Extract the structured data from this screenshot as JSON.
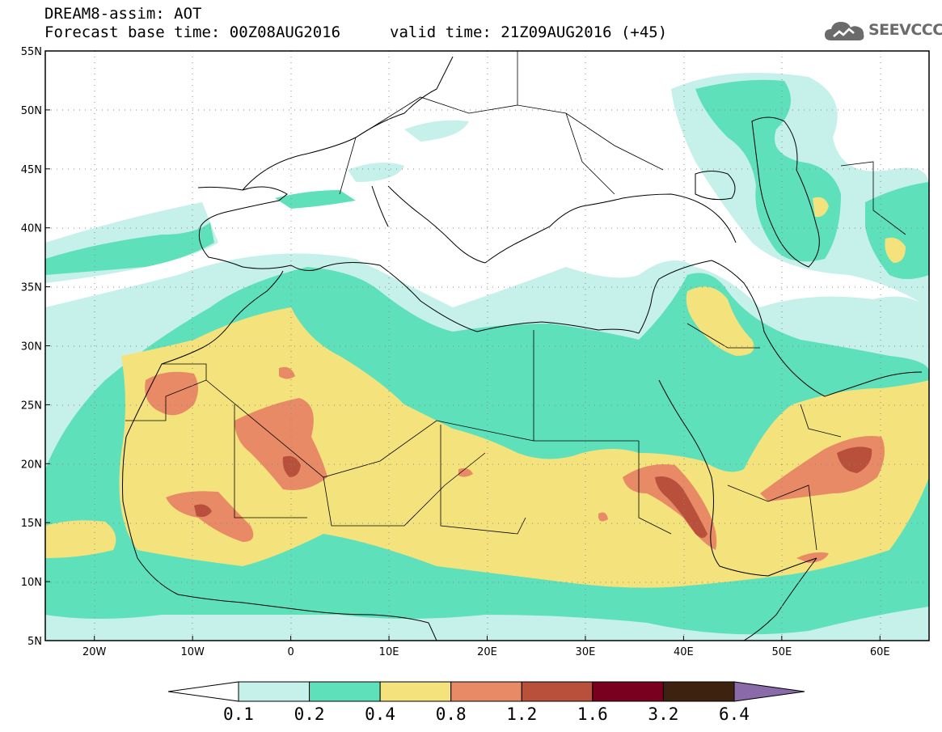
{
  "header": {
    "line1": "DREAM8-assim: AOT",
    "line2_base": "Forecast base time: 00Z08AUG2016",
    "line2_valid": "valid time: 21Z09AUG2016 (+45)"
  },
  "logo": {
    "text": "SEEVCCC",
    "icon": "cloud-icon"
  },
  "map": {
    "lon_range": [
      -25,
      65
    ],
    "lat_range": [
      5,
      55
    ],
    "lat_labels": [
      "55N",
      "50N",
      "45N",
      "40N",
      "35N",
      "30N",
      "25N",
      "20N",
      "15N",
      "10N",
      "5N"
    ],
    "lon_labels": [
      "20W",
      "10W",
      "0",
      "10E",
      "20E",
      "30E",
      "40E",
      "50E",
      "60E"
    ]
  },
  "colorbar": {
    "colors": [
      "#ffffff",
      "#c6f0ea",
      "#5ee0bb",
      "#f4e37c",
      "#e88a66",
      "#b8503c",
      "#7a0020",
      "#3d2210",
      "#8a6aa8"
    ],
    "labels": [
      "0.1",
      "0.2",
      "0.4",
      "0.8",
      "1.2",
      "1.6",
      "3.2",
      "6.4"
    ]
  }
}
